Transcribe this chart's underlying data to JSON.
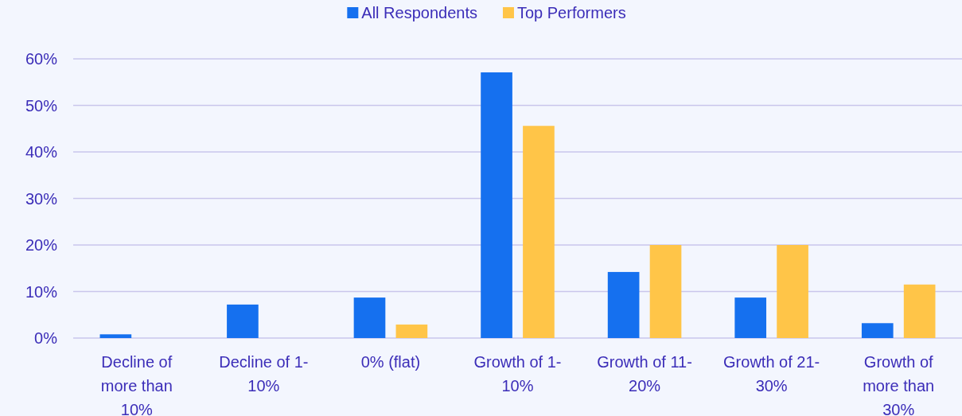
{
  "chart_data": {
    "type": "bar",
    "categories": [
      "Decline of more than 10%",
      "Decline of 1-10%",
      "0% (flat)",
      "Growth of 1-10%",
      "Growth of 11-20%",
      "Growth of 21-30%",
      "Growth of more than 30%"
    ],
    "series": [
      {
        "name": "All Respondents",
        "color": "#1570ef",
        "values": [
          0.8,
          7.2,
          8.7,
          57.1,
          14.2,
          8.7,
          3.2
        ]
      },
      {
        "name": "Top Performers",
        "color": "#ffc548",
        "values": [
          0,
          0,
          2.9,
          45.6,
          20,
          20,
          11.5
        ]
      }
    ],
    "ylim": [
      0,
      60
    ],
    "yticks": [
      {
        "value": 0,
        "label": "0%"
      },
      {
        "value": 10,
        "label": "10%"
      },
      {
        "value": 20,
        "label": "20%"
      },
      {
        "value": 30,
        "label": "30%"
      },
      {
        "value": 40,
        "label": "40%"
      },
      {
        "value": 50,
        "label": "50%"
      },
      {
        "value": 60,
        "label": "60%"
      }
    ],
    "grid": "y",
    "legend": "top"
  }
}
